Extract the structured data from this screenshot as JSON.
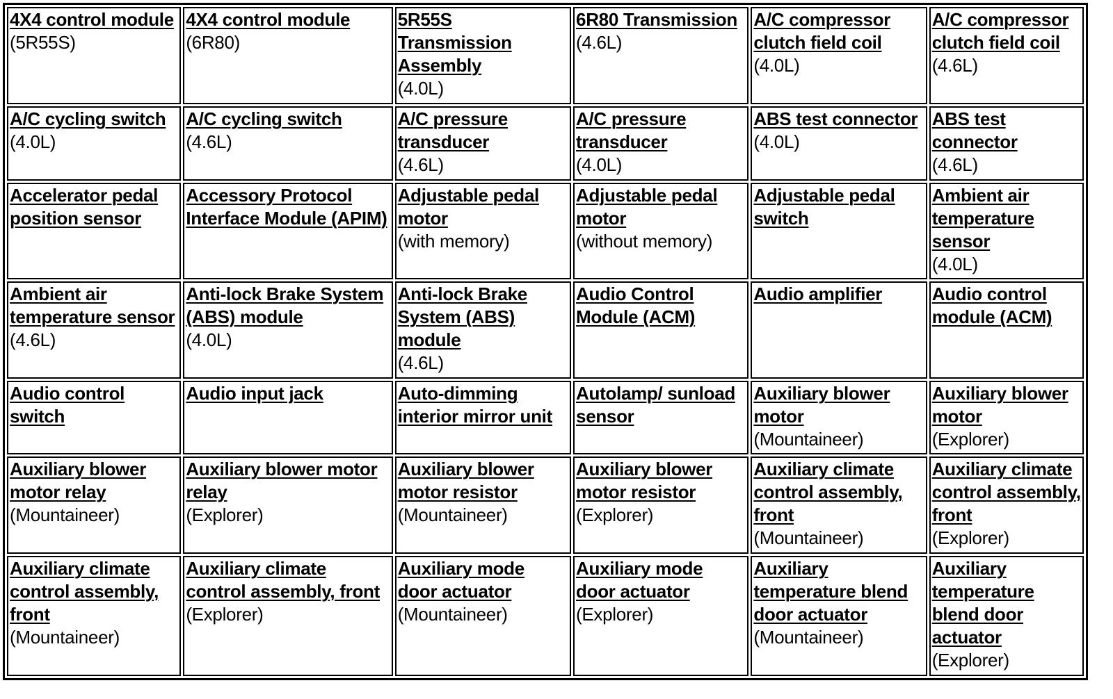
{
  "table": {
    "rows": [
      [
        {
          "label": "4X4 control module",
          "note": "(5R55S)"
        },
        {
          "label": "4X4 control module",
          "note": "(6R80)"
        },
        {
          "label": "5R55S Transmission Assembly",
          "note": "(4.0L)"
        },
        {
          "label": "6R80 Transmission",
          "note": "(4.6L)"
        },
        {
          "label": "A/C compressor clutch field coil",
          "note": "(4.0L)"
        },
        {
          "label": "A/C compressor clutch field coil",
          "note": "(4.6L)"
        }
      ],
      [
        {
          "label": "A/C cycling switch",
          "note": "(4.0L)"
        },
        {
          "label": "A/C cycling switch",
          "note": "(4.6L)"
        },
        {
          "label": "A/C pressure transducer",
          "note": "(4.6L)"
        },
        {
          "label": "A/C pressure transducer",
          "note": "(4.0L)"
        },
        {
          "label": "ABS test connector",
          "note": "(4.0L)"
        },
        {
          "label": "ABS test connector",
          "note": "(4.6L)"
        }
      ],
      [
        {
          "label": "Accelerator pedal position sensor",
          "note": ""
        },
        {
          "label": "Accessory Protocol Interface Module (APIM)",
          "note": ""
        },
        {
          "label": "Adjustable pedal motor",
          "note": "(with memory)"
        },
        {
          "label": "Adjustable pedal motor",
          "note": "(without memory)"
        },
        {
          "label": "Adjustable pedal switch",
          "note": ""
        },
        {
          "label": "Ambient air temperature sensor",
          "note": "(4.0L)"
        }
      ],
      [
        {
          "label": "Ambient air temperature sensor",
          "note": "(4.6L)"
        },
        {
          "label": "Anti-lock Brake System (ABS) module",
          "note": "(4.0L)"
        },
        {
          "label": "Anti-lock Brake System (ABS) module",
          "note": "(4.6L)"
        },
        {
          "label": "Audio Control Module (ACM)",
          "note": ""
        },
        {
          "label": "Audio amplifier",
          "note": ""
        },
        {
          "label": "Audio control module (ACM)",
          "note": ""
        }
      ],
      [
        {
          "label": "Audio control switch",
          "note": ""
        },
        {
          "label": "Audio input jack",
          "note": ""
        },
        {
          "label": "Auto-dimming interior mirror unit",
          "note": ""
        },
        {
          "label": "Autolamp/ sunload sensor",
          "note": ""
        },
        {
          "label": "Auxiliary blower motor",
          "note": "(Mountaineer)"
        },
        {
          "label": "Auxiliary blower motor",
          "note": "(Explorer)"
        }
      ],
      [
        {
          "label": "Auxiliary blower motor relay",
          "note": "(Mountaineer)"
        },
        {
          "label": "Auxiliary blower motor relay",
          "note": "(Explorer)"
        },
        {
          "label": "Auxiliary blower motor resistor",
          "note": "(Mountaineer)"
        },
        {
          "label": "Auxiliary blower motor resistor",
          "note": "(Explorer)"
        },
        {
          "label": "Auxiliary climate control assembly, front",
          "note": "(Mountaineer)"
        },
        {
          "label": "Auxiliary climate control assembly, front",
          "note": "(Explorer)"
        }
      ],
      [
        {
          "label": "Auxiliary climate control assembly, front",
          "note": "(Mountaineer)"
        },
        {
          "label": "Auxiliary climate control assembly, front",
          "note": "(Explorer)"
        },
        {
          "label": "Auxiliary mode door actuator",
          "note": "(Mountaineer)"
        },
        {
          "label": "Auxiliary mode door actuator",
          "note": "(Explorer)"
        },
        {
          "label": "Auxiliary temperature blend door actuator",
          "note": "(Mountaineer)"
        },
        {
          "label": "Auxiliary temperature blend door actuator",
          "note": "(Explorer)"
        }
      ]
    ]
  }
}
